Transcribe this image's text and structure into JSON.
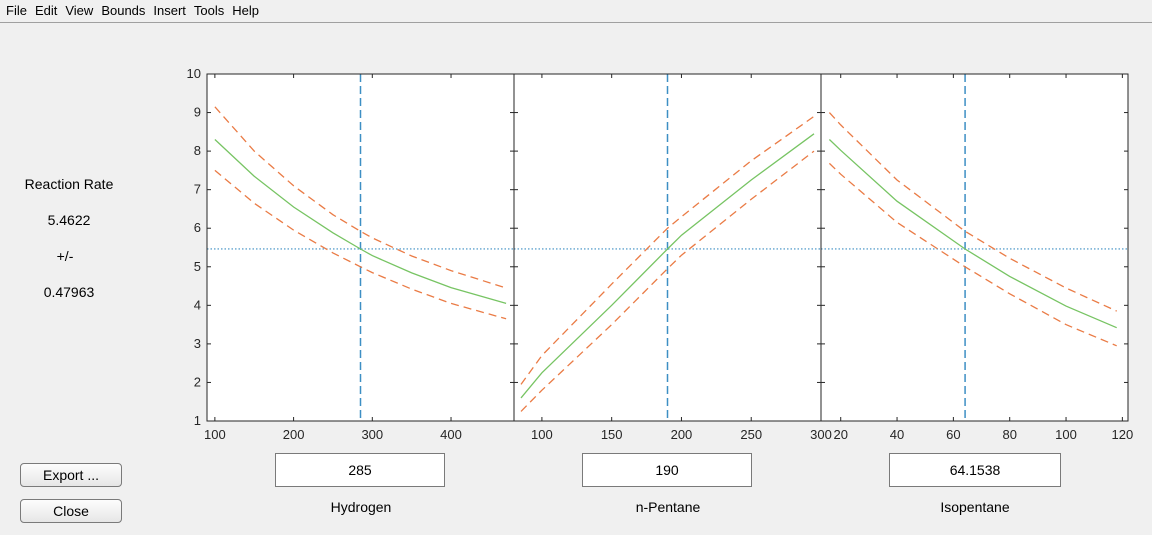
{
  "menu": [
    "File",
    "Edit",
    "View",
    "Bounds",
    "Insert",
    "Tools",
    "Help"
  ],
  "response": {
    "name": "Reaction Rate",
    "value": "5.4622",
    "pm": "+/-",
    "ci": "0.47963"
  },
  "buttons": {
    "export": "Export ...",
    "close": "Close"
  },
  "colors": {
    "fit": "#77c463",
    "bounds": "#ea7b45",
    "crosshair": "#3d8fc4",
    "ref": "#3d8fc4"
  },
  "chart_data": {
    "type": "line",
    "ylim": [
      1,
      10
    ],
    "yticks": [
      "1",
      "2",
      "3",
      "4",
      "5",
      "6",
      "7",
      "8",
      "9",
      "10"
    ],
    "reference_y": 5.4622,
    "panels": [
      {
        "xlabel": "Hydrogen",
        "value": "285",
        "xlim": [
          90,
          480
        ],
        "xticks": [
          100,
          200,
          300,
          400
        ],
        "xticklabels": [
          "100",
          "200",
          "300",
          "400"
        ],
        "current_x": 285,
        "x": [
          100,
          150,
          200,
          250,
          285,
          300,
          350,
          400,
          470
        ],
        "fit": [
          8.3,
          7.35,
          6.55,
          5.88,
          5.46,
          5.29,
          4.84,
          4.46,
          4.05
        ],
        "upper": [
          9.15,
          8.0,
          7.1,
          6.35,
          5.92,
          5.75,
          5.28,
          4.9,
          4.45
        ],
        "lower": [
          7.5,
          6.65,
          5.95,
          5.36,
          5.0,
          4.85,
          4.42,
          4.05,
          3.65
        ]
      },
      {
        "xlabel": "n-Pentane",
        "value": "190",
        "xlim": [
          80,
          300
        ],
        "xticks": [
          100,
          150,
          200,
          250,
          300
        ],
        "xticklabels": [
          "100",
          "150",
          "200",
          "250",
          "300"
        ],
        "current_x": 190,
        "x": [
          85,
          100,
          150,
          190,
          200,
          250,
          295
        ],
        "fit": [
          1.6,
          2.25,
          4.0,
          5.46,
          5.82,
          7.25,
          8.45
        ],
        "upper": [
          1.95,
          2.7,
          4.55,
          6.0,
          6.3,
          7.75,
          8.9
        ],
        "lower": [
          1.25,
          1.8,
          3.5,
          4.95,
          5.3,
          6.75,
          8.0
        ]
      },
      {
        "xlabel": "Isopentane",
        "value": "64.1538",
        "xlim": [
          13,
          122
        ],
        "xticks": [
          20,
          40,
          60,
          80,
          100,
          120
        ],
        "xticklabels": [
          "20",
          "40",
          "60",
          "80",
          "100",
          "120"
        ],
        "current_x": 64.1538,
        "x": [
          16,
          20,
          40,
          64.1538,
          80,
          100,
          118
        ],
        "fit": [
          8.3,
          8.02,
          6.7,
          5.46,
          4.75,
          3.98,
          3.42
        ],
        "upper": [
          9.0,
          8.68,
          7.25,
          5.92,
          5.22,
          4.45,
          3.85
        ],
        "lower": [
          7.68,
          7.4,
          6.15,
          5.0,
          4.3,
          3.5,
          2.95
        ]
      }
    ]
  }
}
